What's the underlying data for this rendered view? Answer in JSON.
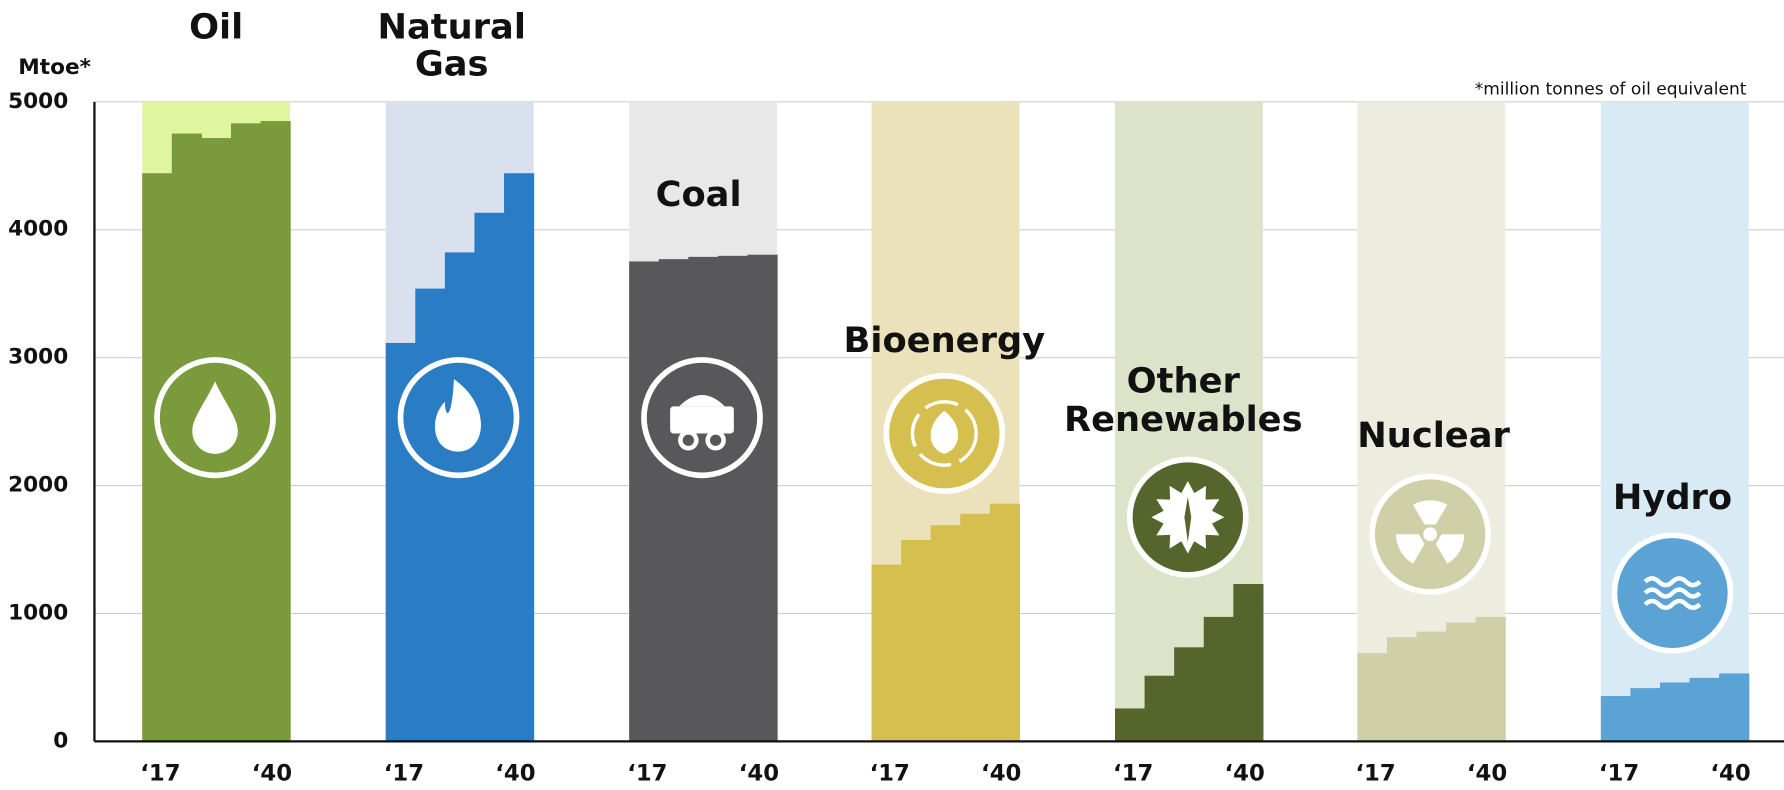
{
  "chart_data": {
    "type": "bar",
    "y_label": "Mtoe*",
    "note": "*million tonnes of oil equivalent",
    "ylim": [
      0,
      5000
    ],
    "yticks": [
      0,
      1000,
      2000,
      3000,
      4000,
      5000
    ],
    "grid": true,
    "categories": [
      "‘17",
      null,
      null,
      null,
      "‘40"
    ],
    "series": [
      {
        "name": "Oil",
        "color": "#7a9a3c",
        "background": "#dff5a0",
        "values": [
          4442,
          4752,
          4717,
          4832,
          4850
        ]
      },
      {
        "name": "Natural Gas",
        "color": "#2a7dc4",
        "background": "#d9e1ee",
        "values": [
          3115,
          3540,
          3823,
          4133,
          4442
        ]
      },
      {
        "name": "Coal",
        "color": "#58585a",
        "background": "#e8e8e8",
        "values": [
          3752,
          3770,
          3788,
          3796,
          3805
        ]
      },
      {
        "name": "Bioenergy",
        "color": "#d5c04f",
        "background": "#ebe1bb",
        "values": [
          1381,
          1575,
          1690,
          1779,
          1858
        ]
      },
      {
        "name": "Other Renewables",
        "color": "#55652c",
        "background": "#dde3c8",
        "values": [
          257,
          513,
          735,
          973,
          1230
        ]
      },
      {
        "name": "Nuclear",
        "color": "#d0d0a8",
        "background": "#ededdf",
        "values": [
          690,
          814,
          858,
          929,
          973
        ]
      },
      {
        "name": "Hydro",
        "color": "#5aa3d4",
        "background": "#d8eaf4",
        "values": [
          354,
          416,
          460,
          496,
          531
        ]
      }
    ]
  }
}
